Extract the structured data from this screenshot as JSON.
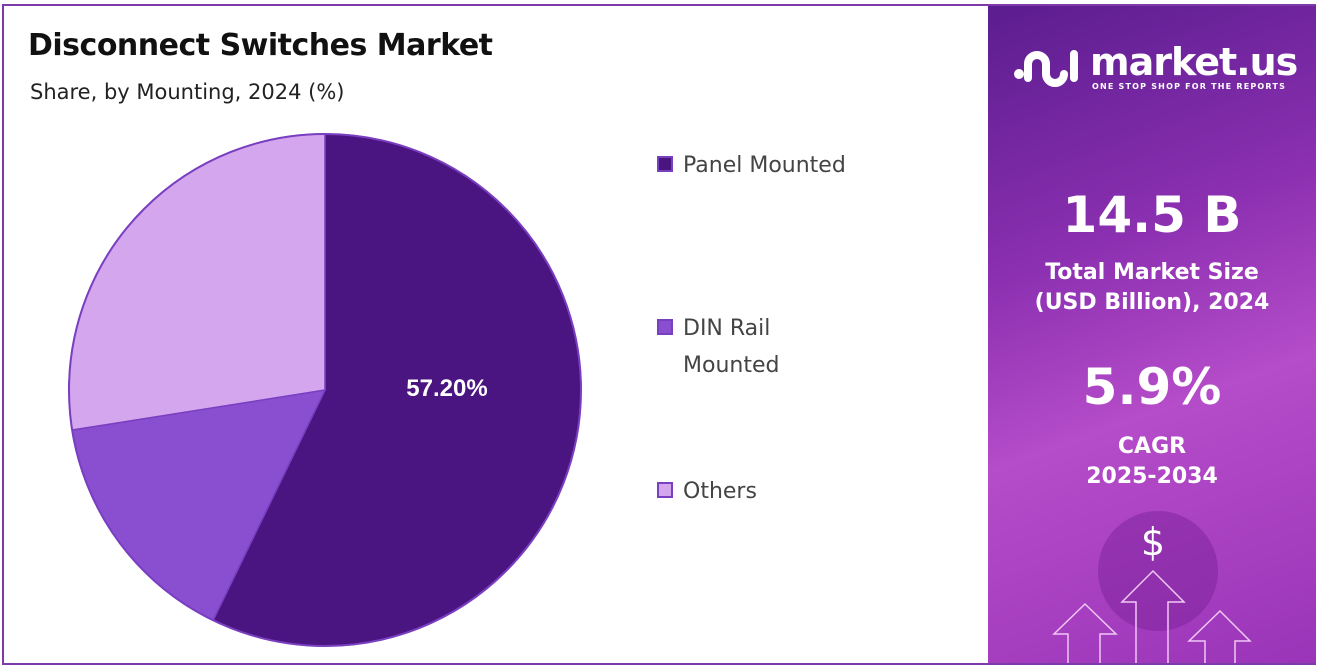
{
  "header": {
    "title": "Disconnect Switches Market",
    "subtitle": "Share, by Mounting, 2024 (%)"
  },
  "chart_data": {
    "type": "pie",
    "title": "Disconnect Switches Market",
    "subtitle": "Share, by Mounting, 2024 (%)",
    "categories": [
      "Panel Mounted",
      "DIN Rail Mounted",
      "Others"
    ],
    "values": [
      57.2,
      15.3,
      27.5
    ],
    "data_labels": [
      "57.20%",
      "",
      ""
    ],
    "colors": [
      "#4a1580",
      "#8a4fd0",
      "#d3a6ee"
    ],
    "legend_placement": "right"
  },
  "legend": [
    {
      "line1": "Panel Mounted",
      "line2": ""
    },
    {
      "line1": "DIN Rail",
      "line2": "Mounted"
    },
    {
      "line1": "Others",
      "line2": ""
    }
  ],
  "panel": {
    "brand": "market.us",
    "tagline": "ONE STOP SHOP FOR THE REPORTS",
    "market_size": "14.5 B",
    "market_size_label1": "Total Market Size",
    "market_size_label2": "(USD Billion), 2024",
    "cagr": "5.9%",
    "cagr_label1": "CAGR",
    "cagr_label2": "2025-2034",
    "dollar": "$"
  }
}
